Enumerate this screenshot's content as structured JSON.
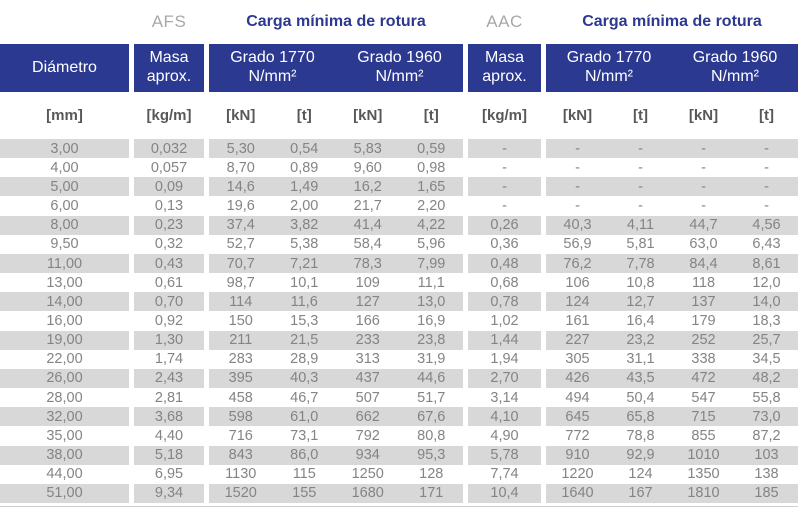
{
  "colors": {
    "header_blue": "#2b3990",
    "stripe_gray": "#d8d8d8",
    "data_text_gray": "#828487",
    "group_label_gray": "#a6a8ab"
  },
  "title_row": {
    "afs": "AFS",
    "carga_afs": "Carga mínima de rotura",
    "aac": "AAC",
    "carga_aac": "Carga mínima de rotura"
  },
  "header": {
    "diametro": "Diámetro",
    "masa_afs": "Masa aprox.",
    "masa_aac": "Masa aprox.",
    "grado_1770": "Grado 1770",
    "grado_1960": "Grado 1960",
    "grado_unit": "N/mm²"
  },
  "units": {
    "mm": "[mm]",
    "kgm": "[kg/m]",
    "kn": "[kN]",
    "t": "[t]"
  },
  "table": {
    "columns": [
      "Diámetro [mm]",
      "AFS Masa aprox. [kg/m]",
      "AFS Grado 1770 [kN]",
      "AFS Grado 1770 [t]",
      "AFS Grado 1960 [kN]",
      "AFS Grado 1960 [t]",
      "AAC Masa aprox. [kg/m]",
      "AAC Grado 1770 [kN]",
      "AAC Grado 1770 [t]",
      "AAC Grado 1960 [kN]",
      "AAC Grado 1960 [t]"
    ],
    "rows": [
      [
        "3,00",
        "0,032",
        "5,30",
        "0,54",
        "5,83",
        "0,59",
        "-",
        "-",
        "-",
        "-",
        "-"
      ],
      [
        "4,00",
        "0,057",
        "8,70",
        "0,89",
        "9,60",
        "0,98",
        "-",
        "-",
        "-",
        "-",
        "-"
      ],
      [
        "5,00",
        "0,09",
        "14,6",
        "1,49",
        "16,2",
        "1,65",
        "-",
        "-",
        "-",
        "-",
        "-"
      ],
      [
        "6,00",
        "0,13",
        "19,6",
        "2,00",
        "21,7",
        "2,20",
        "-",
        "-",
        "-",
        "-",
        "-"
      ],
      [
        "8,00",
        "0,23",
        "37,4",
        "3,82",
        "41,4",
        "4,22",
        "0,26",
        "40,3",
        "4,11",
        "44,7",
        "4,56"
      ],
      [
        "9,50",
        "0,32",
        "52,7",
        "5,38",
        "58,4",
        "5,96",
        "0,36",
        "56,9",
        "5,81",
        "63,0",
        "6,43"
      ],
      [
        "11,00",
        "0,43",
        "70,7",
        "7,21",
        "78,3",
        "7,99",
        "0,48",
        "76,2",
        "7,78",
        "84,4",
        "8,61"
      ],
      [
        "13,00",
        "0,61",
        "98,7",
        "10,1",
        "109",
        "11,1",
        "0,68",
        "106",
        "10,8",
        "118",
        "12,0"
      ],
      [
        "14,00",
        "0,70",
        "114",
        "11,6",
        "127",
        "13,0",
        "0,78",
        "124",
        "12,7",
        "137",
        "14,0"
      ],
      [
        "16,00",
        "0,92",
        "150",
        "15,3",
        "166",
        "16,9",
        "1,02",
        "161",
        "16,4",
        "179",
        "18,3"
      ],
      [
        "19,00",
        "1,30",
        "211",
        "21,5",
        "233",
        "23,8",
        "1,44",
        "227",
        "23,2",
        "252",
        "25,7"
      ],
      [
        "22,00",
        "1,74",
        "283",
        "28,9",
        "313",
        "31,9",
        "1,94",
        "305",
        "31,1",
        "338",
        "34,5"
      ],
      [
        "26,00",
        "2,43",
        "395",
        "40,3",
        "437",
        "44,6",
        "2,70",
        "426",
        "43,5",
        "472",
        "48,2"
      ],
      [
        "28,00",
        "2,81",
        "458",
        "46,7",
        "507",
        "51,7",
        "3,14",
        "494",
        "50,4",
        "547",
        "55,8"
      ],
      [
        "32,00",
        "3,68",
        "598",
        "61,0",
        "662",
        "67,6",
        "4,10",
        "645",
        "65,8",
        "715",
        "73,0"
      ],
      [
        "35,00",
        "4,40",
        "716",
        "73,1",
        "792",
        "80,8",
        "4,90",
        "772",
        "78,8",
        "855",
        "87,2"
      ],
      [
        "38,00",
        "5,18",
        "843",
        "86,0",
        "934",
        "95,3",
        "5,78",
        "910",
        "92,9",
        "1010",
        "103"
      ],
      [
        "44,00",
        "6,95",
        "1130",
        "115",
        "1250",
        "128",
        "7,74",
        "1220",
        "124",
        "1350",
        "138"
      ],
      [
        "51,00",
        "9,34",
        "1520",
        "155",
        "1680",
        "171",
        "10,4",
        "1640",
        "167",
        "1810",
        "185"
      ]
    ]
  }
}
